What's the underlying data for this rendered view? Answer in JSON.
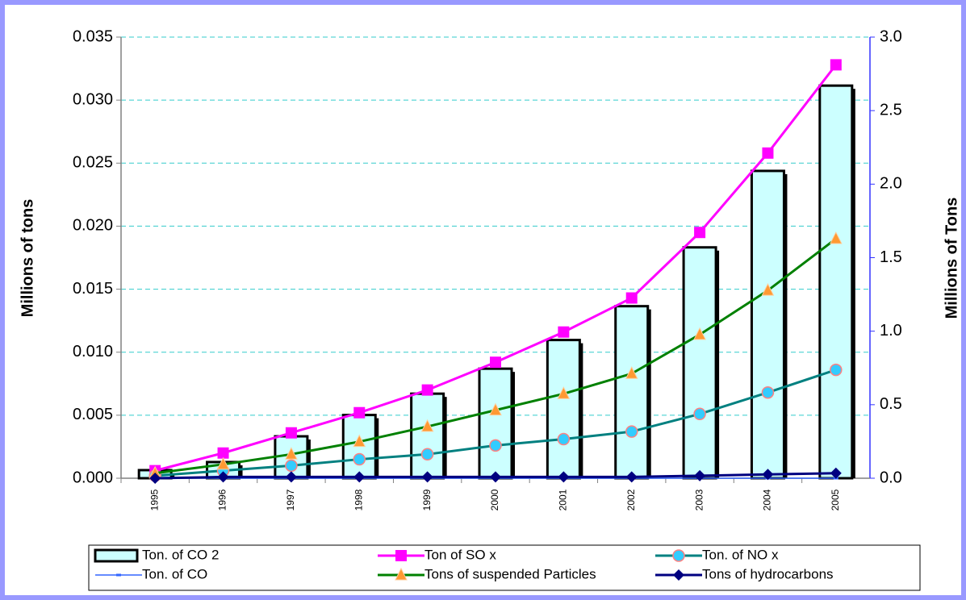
{
  "chart_data": {
    "type": "combo",
    "categories": [
      "1995",
      "1996",
      "1997",
      "1998",
      "1999",
      "2000",
      "2001",
      "2002",
      "2003",
      "2004",
      "2005"
    ],
    "ylabel": "Millions of tons",
    "y2label": "Millions of Tons",
    "ylim": [
      0,
      0.035
    ],
    "yticks": [
      {
        "value": 0,
        "label": "0.000"
      },
      {
        "value": 0.005,
        "label": "0.005"
      },
      {
        "value": 0.01,
        "label": "0.010"
      },
      {
        "value": 0.015,
        "label": "0.015"
      },
      {
        "value": 0.02,
        "label": "0.020"
      },
      {
        "value": 0.025,
        "label": "0.025"
      },
      {
        "value": 0.03,
        "label": "0.030"
      },
      {
        "value": 0.035,
        "label": "0.035"
      }
    ],
    "y2lim": [
      0,
      3
    ],
    "y2ticks": [
      {
        "value": 0,
        "label": "0.0"
      },
      0.5,
      {
        "value": 1,
        "label": "1.0"
      },
      1.5,
      {
        "value": 2,
        "label": "2.0"
      },
      2.5,
      {
        "value": 3,
        "label": "3.0"
      }
    ],
    "grid": true,
    "legend": "bottom",
    "series": [
      {
        "name": "Ton. of CO 2",
        "type": "bar",
        "axis": "y2",
        "color": "#ccffff",
        "values": [
          0.055,
          0.11,
          0.285,
          0.43,
          0.575,
          0.745,
          0.94,
          1.17,
          1.57,
          2.09,
          2.67
        ]
      },
      {
        "name": "Ton of SO x",
        "type": "line",
        "marker": "square",
        "color": "#ff00ff",
        "values": [
          0.0006,
          0.002,
          0.0036,
          0.0052,
          0.007,
          0.0092,
          0.0116,
          0.0143,
          0.0195,
          0.0258,
          0.0328
        ]
      },
      {
        "name": "Ton. of NO x",
        "type": "line",
        "marker": "circle",
        "color": "#008080",
        "values": [
          0.0002,
          0.0006,
          0.001,
          0.0015,
          0.0019,
          0.0026,
          0.0031,
          0.0037,
          0.0051,
          0.0068,
          0.0086
        ]
      },
      {
        "name": "Ton. of CO",
        "type": "line",
        "marker": "dash",
        "color": "#3366ff",
        "values": [
          0,
          0,
          0,
          0,
          0,
          0,
          0,
          0,
          0,
          0,
          0
        ]
      },
      {
        "name": "Tons of suspended Particles",
        "type": "line",
        "marker": "triangle",
        "color": "#008000",
        "values": [
          0.0004,
          0.0011,
          0.0019,
          0.0029,
          0.0041,
          0.0054,
          0.0067,
          0.0083,
          0.0114,
          0.0149,
          0.019
        ]
      },
      {
        "name": "Tons of hydrocarbons",
        "type": "line",
        "marker": "diamond",
        "color": "#000080",
        "values": [
          0,
          0.0001,
          0.0001,
          0.0001,
          0.0001,
          0.0001,
          0.0001,
          0.0001,
          0.0002,
          0.0003,
          0.0004
        ]
      }
    ]
  }
}
